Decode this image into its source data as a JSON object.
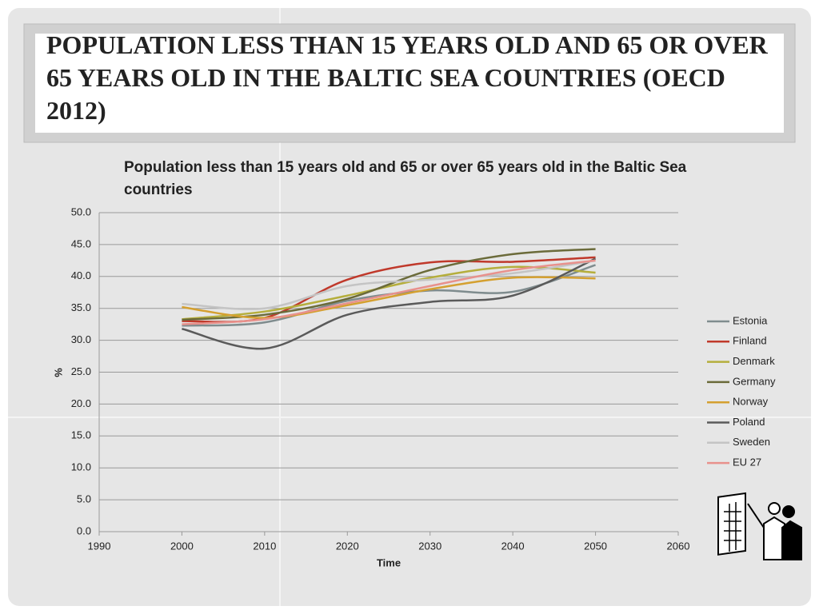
{
  "slide_title": "POPULATION LESS THAN 15 YEARS OLD AND 65 OR OVER 65 YEARS OLD IN THE BALTIC SEA COUNTRIES (OECD 2012)",
  "chart_data": {
    "type": "line",
    "title": "Population less than 15 years old and 65 or over 65 years old in the Baltic Sea countries",
    "x_label": "Time",
    "y_label": "%",
    "x": [
      2000,
      2010,
      2020,
      2030,
      2040,
      2050
    ],
    "xlim": [
      1990,
      2060
    ],
    "xticks": [
      1990,
      2000,
      2010,
      2020,
      2030,
      2040,
      2050,
      2060
    ],
    "ylim": [
      0,
      50
    ],
    "yticks": [
      {
        "value": 0,
        "label": "0.0"
      },
      {
        "value": 5,
        "label": "5.0"
      },
      {
        "value": 10,
        "label": "10.0"
      },
      {
        "value": 15,
        "label": "15.0"
      },
      {
        "value": 20,
        "label": "20.0"
      },
      {
        "value": 25,
        "label": "25.0"
      },
      {
        "value": 30,
        "label": "30.0"
      },
      {
        "value": 35,
        "label": "35.0"
      },
      {
        "value": 40,
        "label": "40.0"
      },
      {
        "value": 45,
        "label": "45.0"
      },
      {
        "value": 50,
        "label": "50.0"
      }
    ],
    "grid": true,
    "legend": "right",
    "series": [
      {
        "name": "Estonia",
        "color": "#7f8c8e",
        "values": [
          32.3,
          32.8,
          36.2,
          37.8,
          37.6,
          41.8
        ]
      },
      {
        "name": "Finland",
        "color": "#c0392b",
        "values": [
          33.0,
          33.5,
          39.5,
          42.2,
          42.3,
          43.0
        ]
      },
      {
        "name": "Denmark",
        "color": "#b5ae3c",
        "values": [
          33.3,
          34.5,
          37.0,
          39.8,
          41.5,
          40.6
        ]
      },
      {
        "name": "Germany",
        "color": "#6b6b3a",
        "values": [
          33.2,
          34.0,
          36.5,
          41.0,
          43.5,
          44.3
        ]
      },
      {
        "name": "Norway",
        "color": "#d4a030",
        "values": [
          35.2,
          33.5,
          35.5,
          38.0,
          39.8,
          39.7
        ]
      },
      {
        "name": "Poland",
        "color": "#5a5a5a",
        "values": [
          31.8,
          28.7,
          34.0,
          36.0,
          37.0,
          42.8
        ]
      },
      {
        "name": "Sweden",
        "color": "#c4c4c4",
        "values": [
          35.7,
          35.0,
          38.5,
          39.5,
          40.5,
          42.5
        ]
      },
      {
        "name": "EU 27",
        "color": "#e8918c",
        "values": [
          32.5,
          33.3,
          35.8,
          38.5,
          41.0,
          42.5
        ]
      }
    ]
  }
}
